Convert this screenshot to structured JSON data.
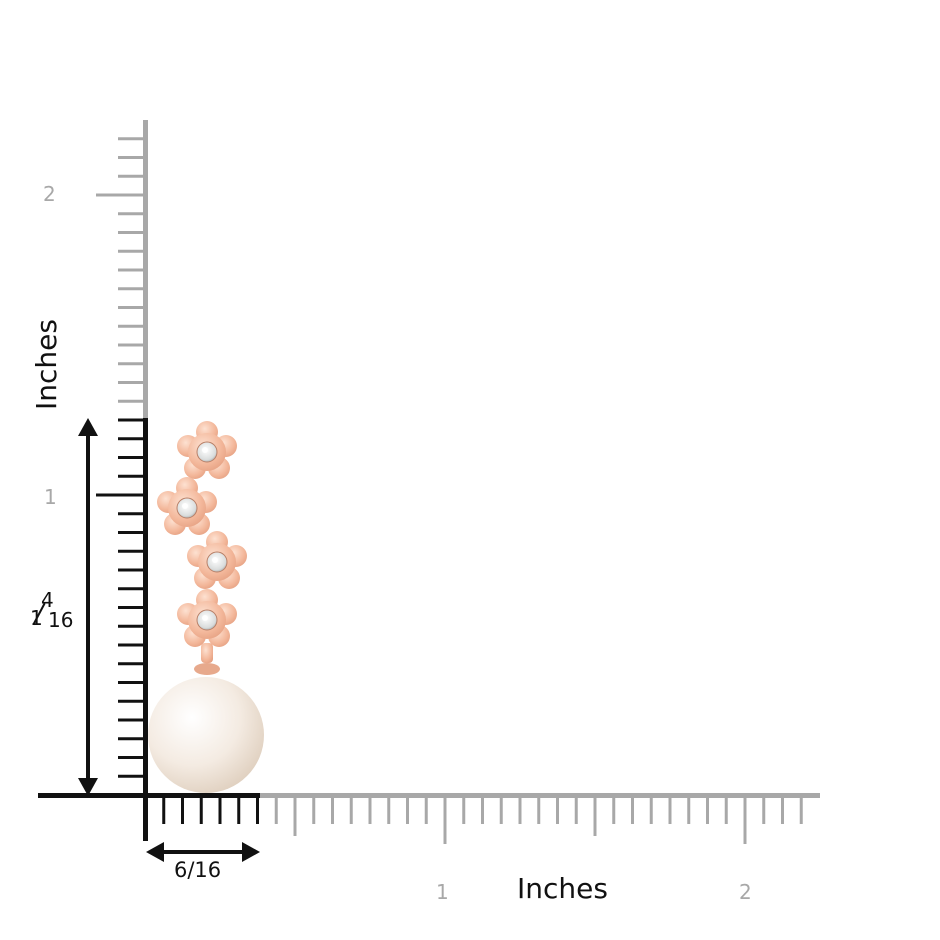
{
  "ruler": {
    "unit_label_x": "Inches",
    "unit_label_y": "Inches",
    "x_ticks": [
      "1",
      "2"
    ],
    "y_ticks": [
      "1",
      "2"
    ],
    "tick_color": "#a8a8a8",
    "highlight_color": "#111111"
  },
  "dimensions": {
    "width": "6/16",
    "height_whole": "1",
    "height_num": "4",
    "height_den": "16"
  },
  "product": {
    "metal_color": "#f3b79a",
    "pearl_color": "#f4ebe2",
    "flowers": 4
  }
}
